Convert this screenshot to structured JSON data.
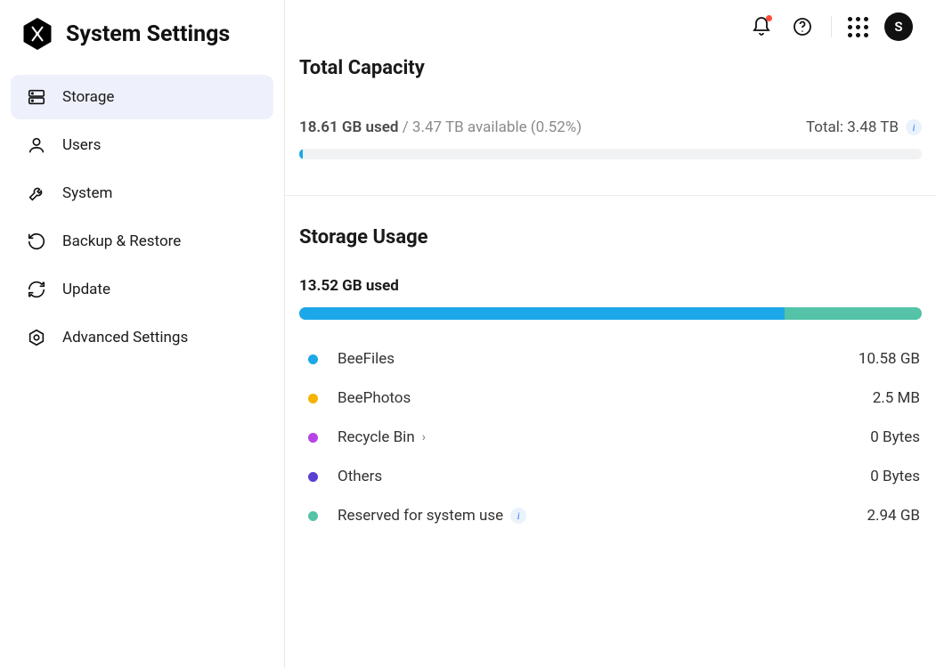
{
  "app": {
    "title": "System Settings",
    "avatar_initial": "S"
  },
  "sidebar": {
    "items": [
      {
        "key": "storage",
        "label": "Storage",
        "active": true
      },
      {
        "key": "users",
        "label": "Users",
        "active": false
      },
      {
        "key": "system",
        "label": "System",
        "active": false
      },
      {
        "key": "backup",
        "label": "Backup & Restore",
        "active": false
      },
      {
        "key": "update",
        "label": "Update",
        "active": false
      },
      {
        "key": "advanced",
        "label": "Advanced Settings",
        "active": false
      }
    ]
  },
  "capacity": {
    "section_title": "Total Capacity",
    "used_text": "18.61 GB used",
    "available_text": "3.47 TB available (0.52%)",
    "total_label": "Total: 3.48 TB",
    "bar": {
      "percent": 0.52,
      "fill_color": "#1ba7e8",
      "track_color": "#f1f2f3"
    }
  },
  "usage": {
    "section_title": "Storage Usage",
    "used_text": "13.52 GB used",
    "bar_track_color": "#f1f2f3",
    "segments": [
      {
        "color": "#1ba7e8",
        "percent": 78
      },
      {
        "color": "#54c3a7",
        "percent": 22
      }
    ],
    "items": [
      {
        "color": "#1ba7e8",
        "label": "BeeFiles",
        "value": "10.58 GB",
        "chevron": false,
        "info": false
      },
      {
        "color": "#f4b400",
        "label": "BeePhotos",
        "value": "2.5 MB",
        "chevron": false,
        "info": false
      },
      {
        "color": "#b743e6",
        "label": "Recycle Bin",
        "value": "0 Bytes",
        "chevron": true,
        "info": false
      },
      {
        "color": "#5a3fd1",
        "label": "Others",
        "value": "0 Bytes",
        "chevron": false,
        "info": false
      },
      {
        "color": "#54c3a7",
        "label": "Reserved for system use",
        "value": "2.94 GB",
        "chevron": false,
        "info": true
      }
    ]
  },
  "colors": {
    "sidebar_active_bg": "#eef1fb",
    "divider": "#ececec",
    "text_muted": "#8a8a8a",
    "notif_dot": "#ff4d3a"
  }
}
